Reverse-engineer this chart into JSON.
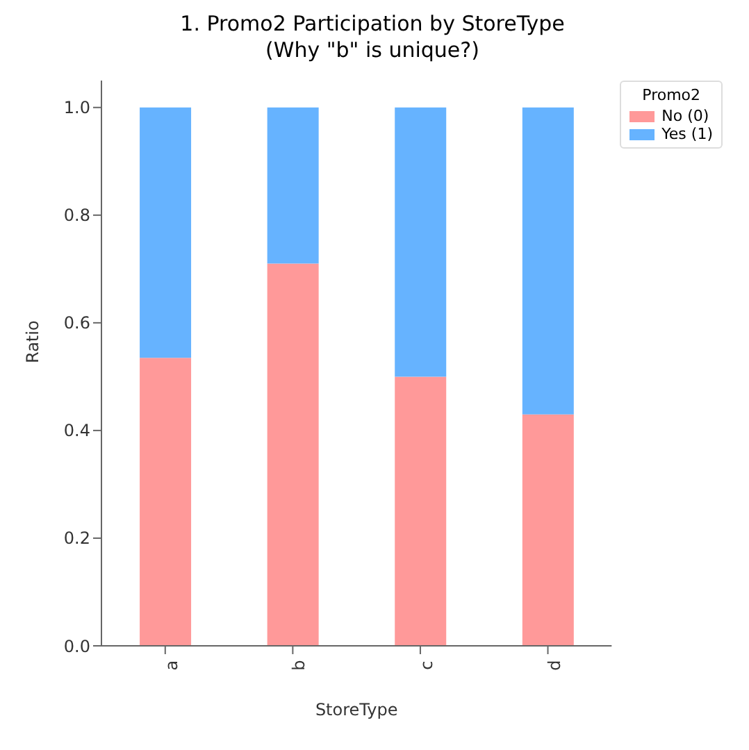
{
  "chart_data": {
    "type": "bar",
    "title": "1. Promo2 Participation by StoreType\n(Why \"b\" is unique?)",
    "xlabel": "StoreType",
    "ylabel": "Ratio",
    "legend_title": "Promo2",
    "categories": [
      "a",
      "b",
      "c",
      "d"
    ],
    "stacked": true,
    "series": [
      {
        "name": "No (0)",
        "color": "#ff9999",
        "values": [
          0.535,
          0.71,
          0.5,
          0.43
        ]
      },
      {
        "name": "Yes (1)",
        "color": "#66b3ff",
        "values": [
          0.465,
          0.29,
          0.5,
          0.57
        ]
      }
    ],
    "ylim": [
      0,
      1.05
    ],
    "yticks": [
      {
        "value": 0,
        "label": "0.0"
      },
      0.2,
      0.4,
      0.6,
      0.8,
      {
        "value": 1,
        "label": "1.0"
      }
    ],
    "grid": false,
    "legend": "top right"
  }
}
